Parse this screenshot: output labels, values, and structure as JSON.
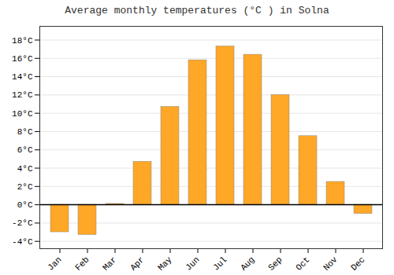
{
  "chart_data": {
    "type": "bar",
    "title": "Average monthly temperatures (°C ) in Solna",
    "categories": [
      "Jan",
      "Feb",
      "Mar",
      "Apr",
      "May",
      "Jun",
      "Jul",
      "Aug",
      "Sep",
      "Oct",
      "Nov",
      "Dec"
    ],
    "values": [
      -3.0,
      -3.3,
      0.1,
      4.7,
      10.7,
      15.8,
      17.3,
      16.4,
      12.0,
      7.5,
      2.5,
      -1.0
    ],
    "color": "#FFA726",
    "ylim": [
      -4.8,
      19.5
    ],
    "yticks": [
      {
        "value": -4,
        "label": "-4°C"
      },
      {
        "value": -2,
        "label": "-2°C"
      },
      {
        "value": 0,
        "label": "0°C"
      },
      {
        "value": 2,
        "label": "2°C"
      },
      {
        "value": 4,
        "label": "4°C"
      },
      {
        "value": 6,
        "label": "6°C"
      },
      {
        "value": 8,
        "label": "8°C"
      },
      {
        "value": 10,
        "label": "10°C"
      },
      {
        "value": 12,
        "label": "12°C"
      },
      {
        "value": 14,
        "label": "14°C"
      },
      {
        "value": 16,
        "label": "16°C"
      },
      {
        "value": 18,
        "label": "18°C"
      }
    ],
    "grid": true
  }
}
